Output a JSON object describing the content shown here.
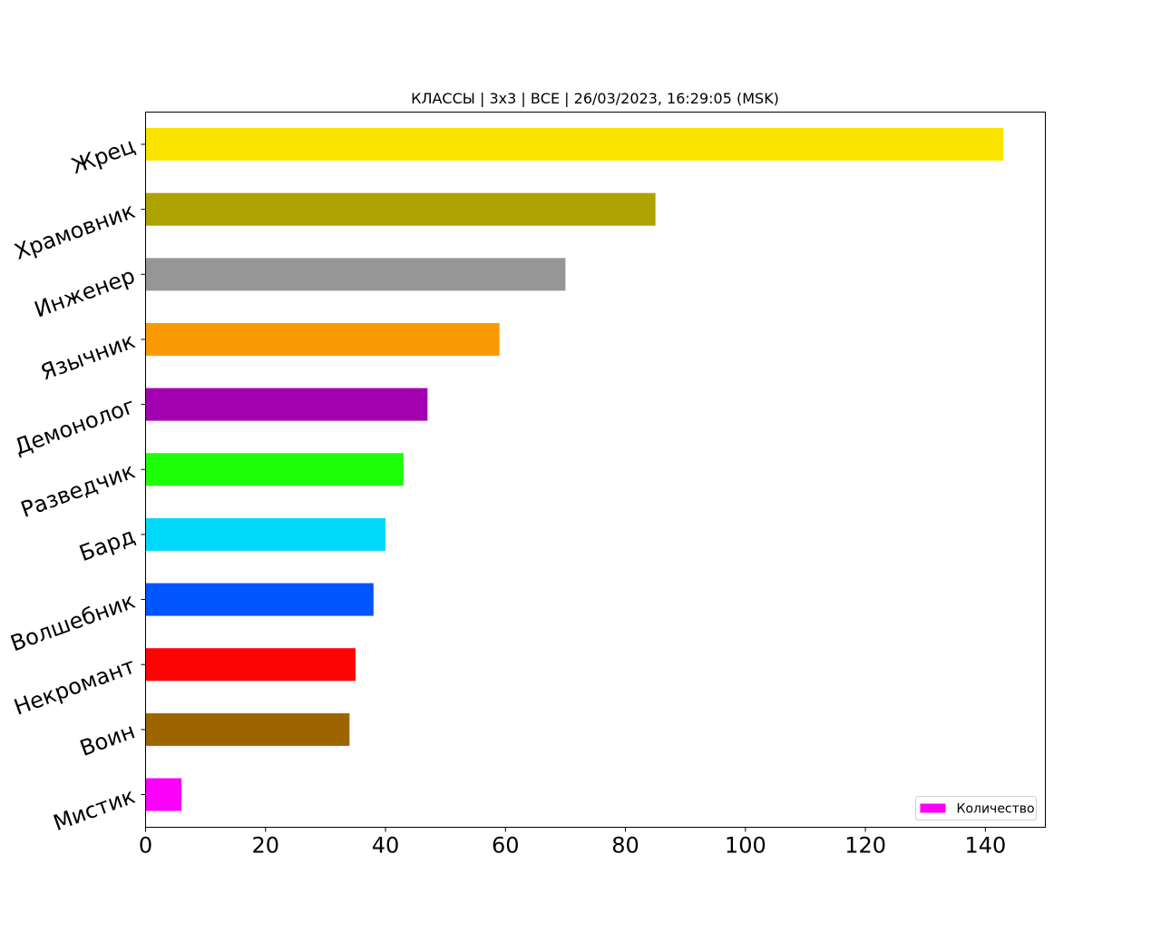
{
  "chart_data": {
    "type": "bar",
    "orientation": "horizontal",
    "title": "КЛАССЫ | 3x3 | ВСЕ | 26/03/2023, 16:29:05 (MSK)",
    "xlabel": "",
    "ylabel": "",
    "xlim": [
      0,
      150
    ],
    "x_ticks": [
      0,
      20,
      40,
      60,
      80,
      100,
      120,
      140
    ],
    "grid": false,
    "legend_position": "bottom-right",
    "categories": [
      "Жрец",
      "Храмовник",
      "Инженер",
      "Язычник",
      "Демонолог",
      "Разведчик",
      "Бард",
      "Волшебник",
      "Некромант",
      "Воин",
      "Мистик"
    ],
    "series": [
      {
        "name": "Количество",
        "values": [
          143,
          85,
          70,
          59,
          47,
          43,
          40,
          38,
          35,
          34,
          6
        ],
        "colors": [
          "#fbe300",
          "#ada200",
          "#969696",
          "#f99a04",
          "#a300b0",
          "#1dff06",
          "#00d9fa",
          "#0155ff",
          "#fd0404",
          "#9e6400",
          "#fa00fa"
        ]
      }
    ],
    "legend_swatch_color": "#fa00fa"
  }
}
